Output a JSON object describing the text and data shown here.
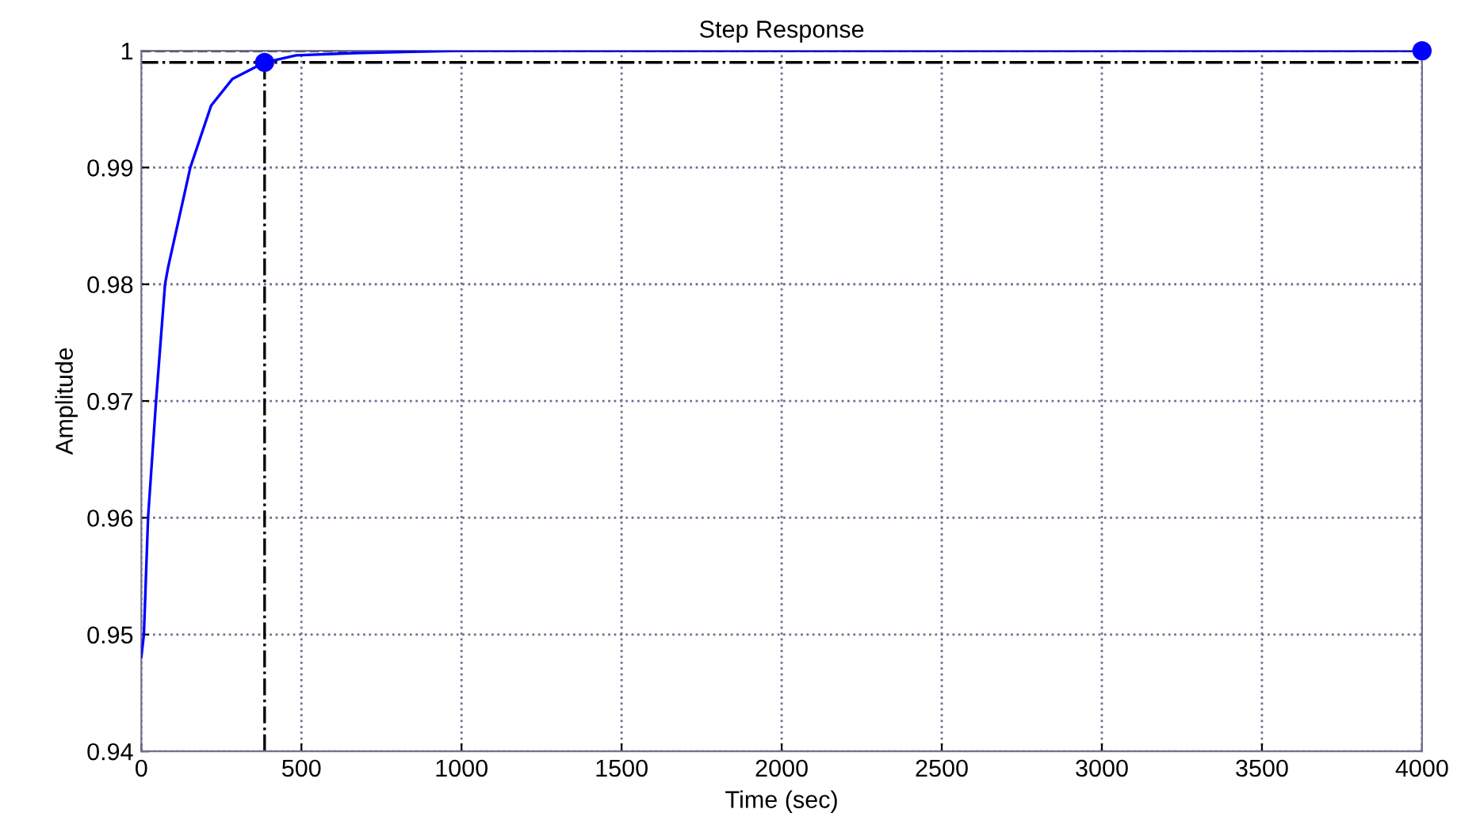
{
  "chart_data": {
    "type": "line",
    "title": "Step Response",
    "xlabel": "Time (sec)",
    "ylabel": "Amplitude",
    "series": [
      {
        "color": "#0000ff",
        "marker": "none",
        "x": [
          0,
          0,
          8,
          21,
          46,
          74,
          84,
          153,
          218,
          285,
          385,
          483,
          665,
          1000,
          2000,
          3000,
          4000
        ],
        "values": [
          0.9481,
          0.9481,
          0.95,
          0.96,
          0.97,
          0.98,
          0.9815,
          0.99,
          0.9953,
          0.9976,
          0.999,
          0.9996,
          0.9998,
          1.0,
          1.0,
          1.0,
          1.0
        ]
      },
      {
        "type": "scatter",
        "color": "#0000ff",
        "marker": "circle",
        "x": [
          385
        ],
        "values": [
          0.999
        ]
      },
      {
        "type": "scatter",
        "color": "#0000ff",
        "marker": "circle",
        "x": [
          4000
        ],
        "values": [
          1.0
        ]
      }
    ],
    "ref_lines": [
      {
        "axis": "y",
        "value": 0.999,
        "color": "#000000",
        "line_style": "dashdot"
      },
      {
        "axis": "x",
        "value": 385,
        "color": "#000000",
        "line_style": "dashdot"
      },
      {
        "axis": "y",
        "value": 1.0,
        "color": "#000000",
        "line_style": "dashed"
      }
    ],
    "xlim": [
      0,
      4000
    ],
    "xticks": [
      0,
      500,
      1000,
      1500,
      2000,
      2500,
      3000,
      3500,
      4000
    ],
    "ylim": [
      0.94,
      1.0
    ],
    "yticks": [
      0.94,
      0.95,
      0.96,
      0.97,
      0.98,
      0.99,
      1
    ],
    "grid": true,
    "legend": false
  }
}
